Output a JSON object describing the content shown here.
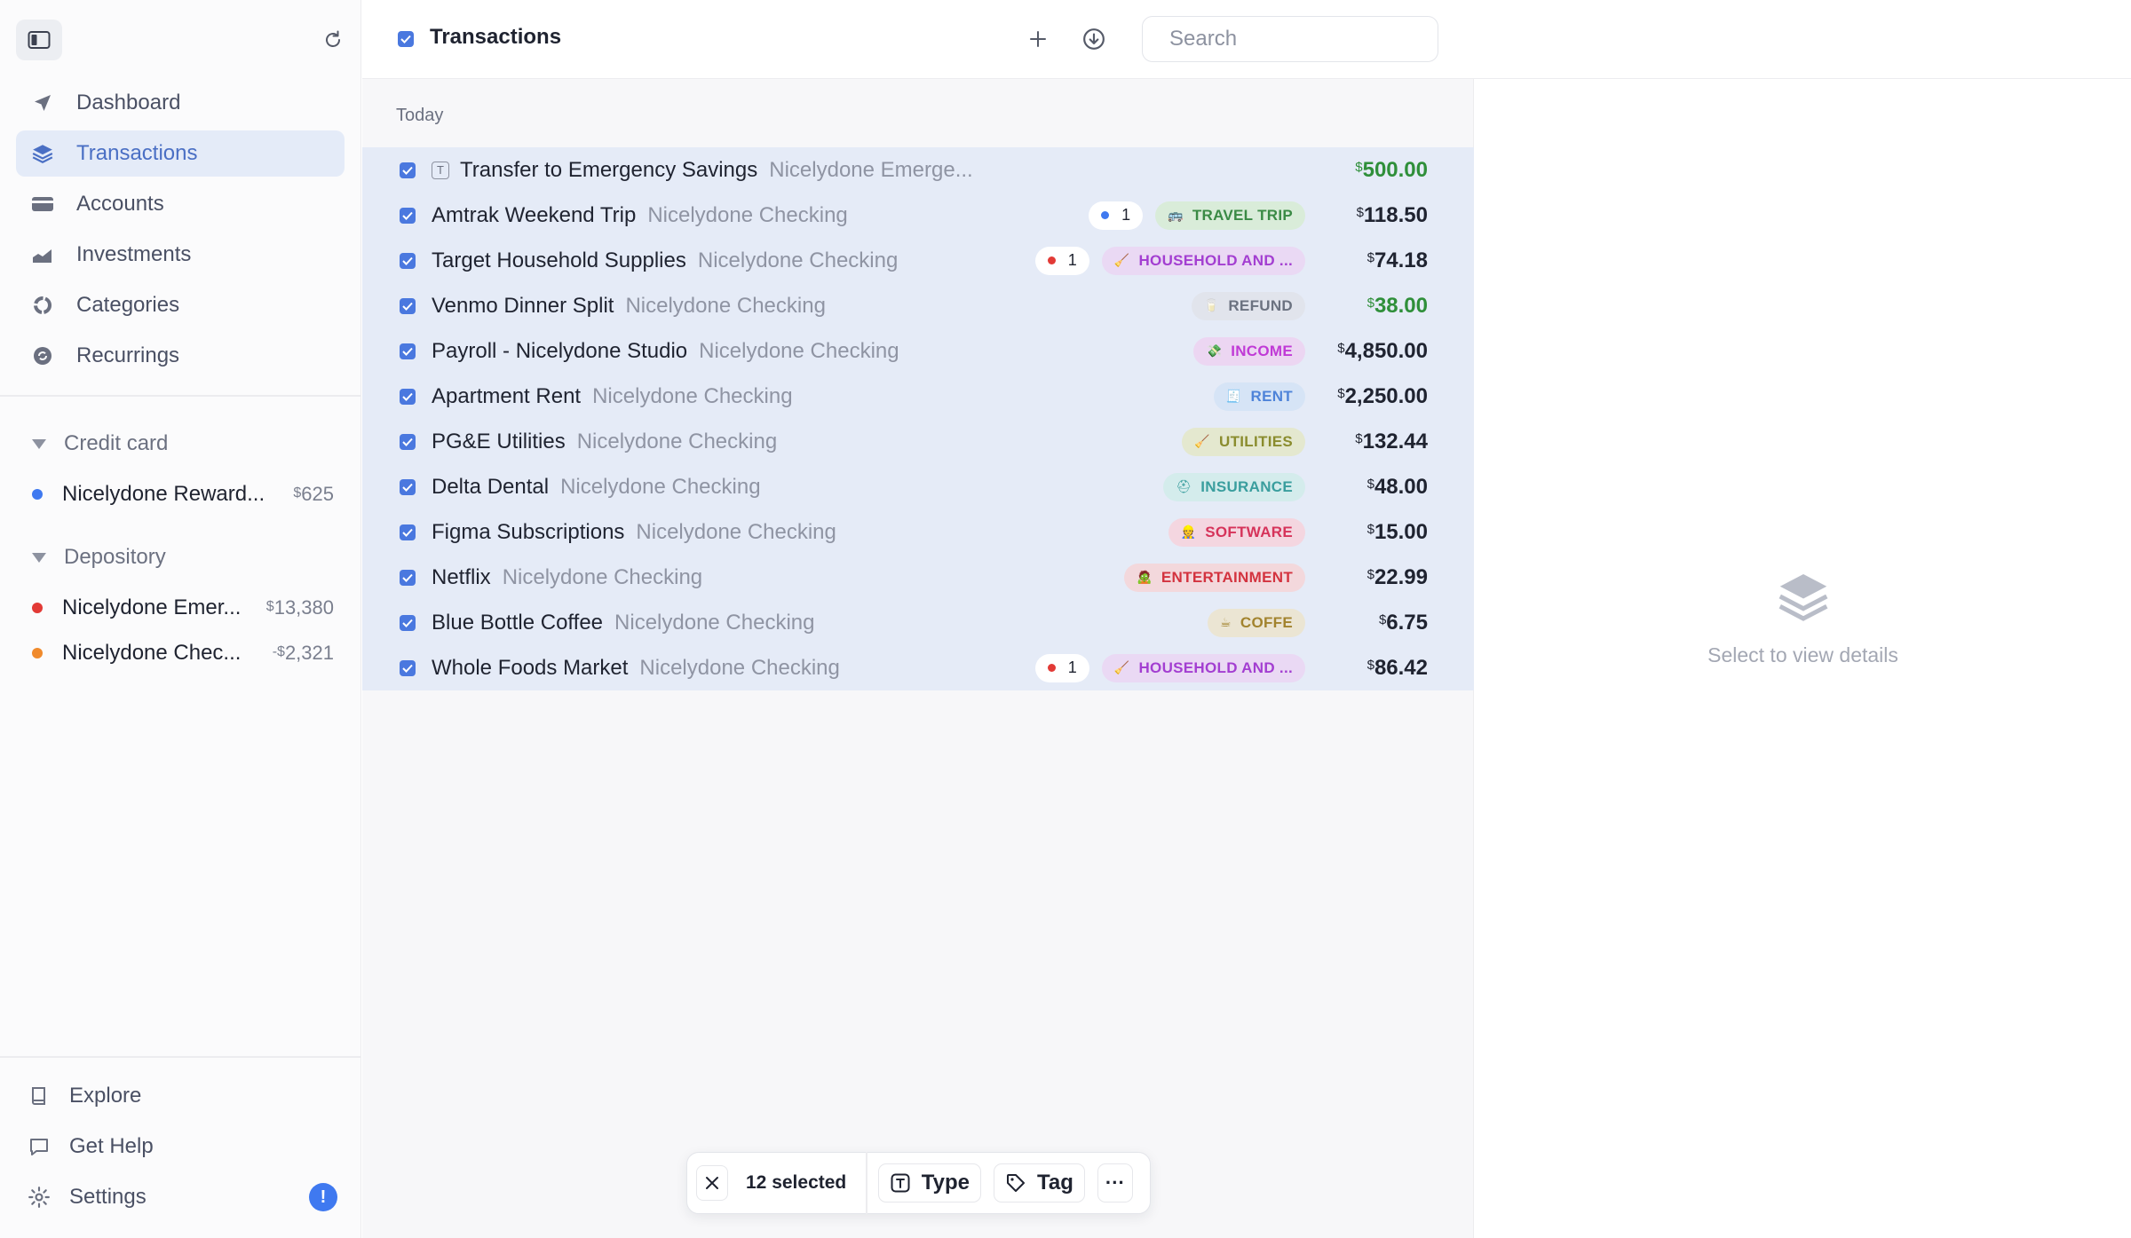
{
  "sidebar": {
    "nav": [
      {
        "label": "Dashboard",
        "icon": "navigation-arrow-icon",
        "active": false
      },
      {
        "label": "Transactions",
        "icon": "layers-icon",
        "active": true
      },
      {
        "label": "Accounts",
        "icon": "credit-card-icon",
        "active": false
      },
      {
        "label": "Investments",
        "icon": "chart-area-icon",
        "active": false
      },
      {
        "label": "Categories",
        "icon": "pie-icon",
        "active": false
      },
      {
        "label": "Recurrings",
        "icon": "recurring-icon",
        "active": false
      }
    ],
    "groups": [
      {
        "label": "Credit card",
        "accounts": [
          {
            "name": "Nicelydone Reward...",
            "balance_symbol": "$",
            "balance": "625",
            "dot_color": "#3f79f0"
          }
        ]
      },
      {
        "label": "Depository",
        "accounts": [
          {
            "name": "Nicelydone Emer...",
            "balance_symbol": "$",
            "balance": "13,380",
            "dot_color": "#e23a36"
          },
          {
            "name": "Nicelydone Chec...",
            "balance_symbol": "-$",
            "balance": "2,321",
            "dot_color": "#f08a2c"
          }
        ]
      }
    ],
    "bottom": [
      {
        "label": "Explore",
        "icon": "book-icon"
      },
      {
        "label": "Get Help",
        "icon": "chat-icon"
      },
      {
        "label": "Settings",
        "icon": "gear-icon",
        "badge": "!"
      }
    ]
  },
  "header": {
    "title": "Transactions",
    "search_placeholder": "Search"
  },
  "list": {
    "day_label": "Today",
    "transactions": [
      {
        "desc": "Transfer to Emergency Savings",
        "account": "Nicelydone Emerge...",
        "type_icon": "T",
        "count": null,
        "tag": null,
        "amount": "500.00",
        "positive": true
      },
      {
        "desc": "Amtrak Weekend Trip",
        "account": "Nicelydone Checking",
        "count": "1",
        "count_color": "#3f79f0",
        "tag": {
          "label": "TRAVEL TRIP",
          "emoji": "🚌",
          "bg": "#d9ecd9",
          "fg": "#3a8a45"
        },
        "amount": "118.50",
        "positive": false
      },
      {
        "desc": "Target Household Supplies",
        "account": "Nicelydone Checking",
        "count": "1",
        "count_color": "#e23a36",
        "tag": {
          "label": "HOUSEHOLD AND ...",
          "emoji": "🧹",
          "bg": "#ead9f4",
          "fg": "#a33ed1"
        },
        "amount": "74.18",
        "positive": false
      },
      {
        "desc": "Venmo Dinner Split",
        "account": "Nicelydone Checking",
        "count": null,
        "tag": {
          "label": "REFUND",
          "emoji": "🥛",
          "bg": "#e1e4ec",
          "fg": "#6b7280"
        },
        "amount": "38.00",
        "positive": true
      },
      {
        "desc": "Payroll - Nicelydone Studio",
        "account": "Nicelydone Checking",
        "count": null,
        "tag": {
          "label": "INCOME",
          "emoji": "💸",
          "bg": "#ecd6f2",
          "fg": "#c03ad6"
        },
        "amount": "4,850.00",
        "positive": false
      },
      {
        "desc": "Apartment Rent",
        "account": "Nicelydone Checking",
        "count": null,
        "tag": {
          "label": "RENT",
          "emoji": "🧾",
          "bg": "#d6e4f6",
          "fg": "#4e83d9"
        },
        "amount": "2,250.00",
        "positive": false
      },
      {
        "desc": "PG&E Utilities",
        "account": "Nicelydone Checking",
        "count": null,
        "tag": {
          "label": "UTILITIES",
          "emoji": "🧹",
          "bg": "#e4e8cf",
          "fg": "#8a8c2e"
        },
        "amount": "132.44",
        "positive": false
      },
      {
        "desc": "Delta Dental",
        "account": "Nicelydone Checking",
        "count": null,
        "tag": {
          "label": "INSURANCE",
          "emoji": "⛑",
          "bg": "#d4ecec",
          "fg": "#3a9e9e"
        },
        "amount": "48.00",
        "positive": false
      },
      {
        "desc": "Figma Subscriptions",
        "account": "Nicelydone Checking",
        "count": null,
        "tag": {
          "label": "SOFTWARE",
          "emoji": "👷",
          "bg": "#f4d6e0",
          "fg": "#d6335a"
        },
        "amount": "15.00",
        "positive": false
      },
      {
        "desc": "Netflix",
        "account": "Nicelydone Checking",
        "count": null,
        "tag": {
          "label": "ENTERTAINMENT",
          "emoji": "🧟",
          "bg": "#f3d8dc",
          "fg": "#d3333f"
        },
        "amount": "22.99",
        "positive": false
      },
      {
        "desc": "Blue Bottle Coffee",
        "account": "Nicelydone Checking",
        "count": null,
        "tag": {
          "label": "COFFE",
          "emoji": "☕",
          "bg": "#ebe5d3",
          "fg": "#a2832e"
        },
        "amount": "6.75",
        "positive": false
      },
      {
        "desc": "Whole Foods Market",
        "account": "Nicelydone Checking",
        "count": "1",
        "count_color": "#e23a36",
        "tag": {
          "label": "HOUSEHOLD AND ...",
          "emoji": "🧹",
          "bg": "#ead9f4",
          "fg": "#a33ed1"
        },
        "amount": "86.42",
        "positive": false
      }
    ]
  },
  "detail": {
    "empty_label": "Select to view details"
  },
  "bulkbar": {
    "selected_label": "12 selected",
    "type_label": "Type",
    "tag_label": "Tag",
    "more_label": "···"
  },
  "colors": {
    "accent": "#4a78df",
    "selected_row_bg": "#e5ebf7",
    "positive_amount": "#2f8f3a"
  }
}
